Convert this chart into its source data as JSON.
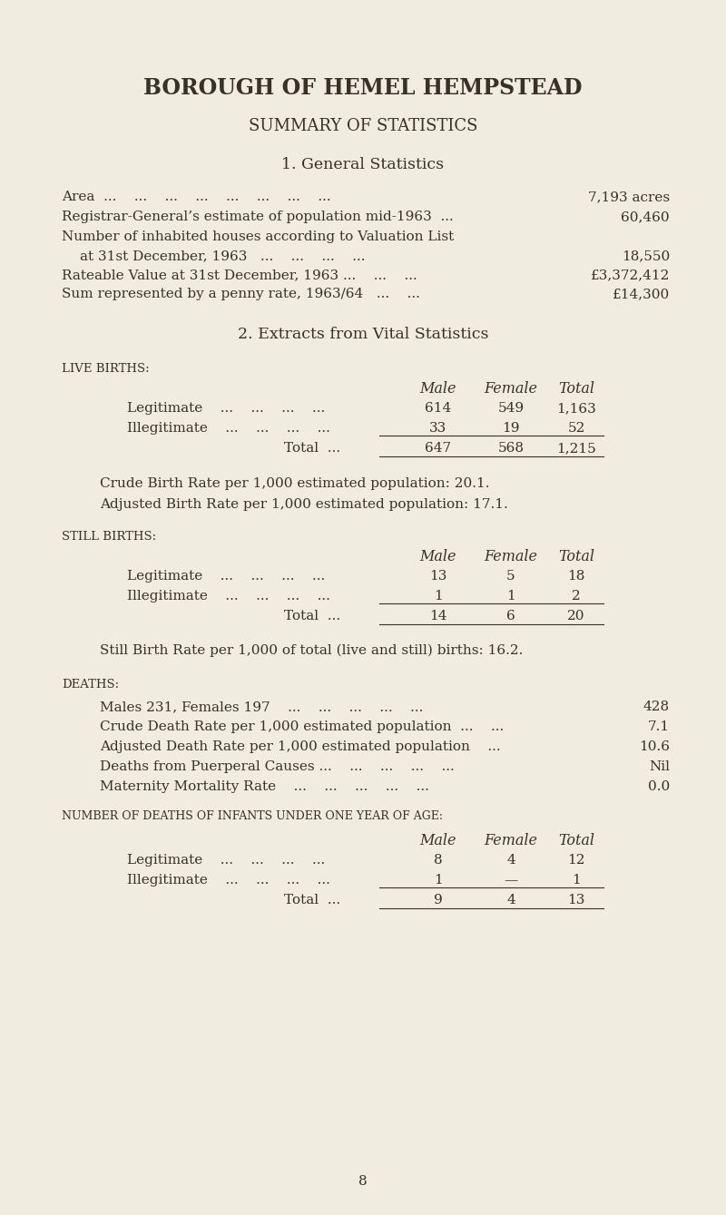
{
  "bg_color": "#f0ece0",
  "text_color": "#3a3028",
  "title1": "BOROUGH OF HEMEL HEMPSTEAD",
  "title2": "SUMMARY OF STATISTICS",
  "section1_title": "1. General Statistics",
  "section2_title": "2. Extracts from Vital Statistics",
  "crude_birth_rate": "Crude Birth Rate per 1,000 estimated population: 20.1.",
  "adjusted_birth_rate": "Adjusted Birth Rate per 1,000 estimated population: 17.1.",
  "still_birth_rate": "Still Birth Rate per 1,000 of total (live and still) births: 16.2.",
  "page_number": "8"
}
